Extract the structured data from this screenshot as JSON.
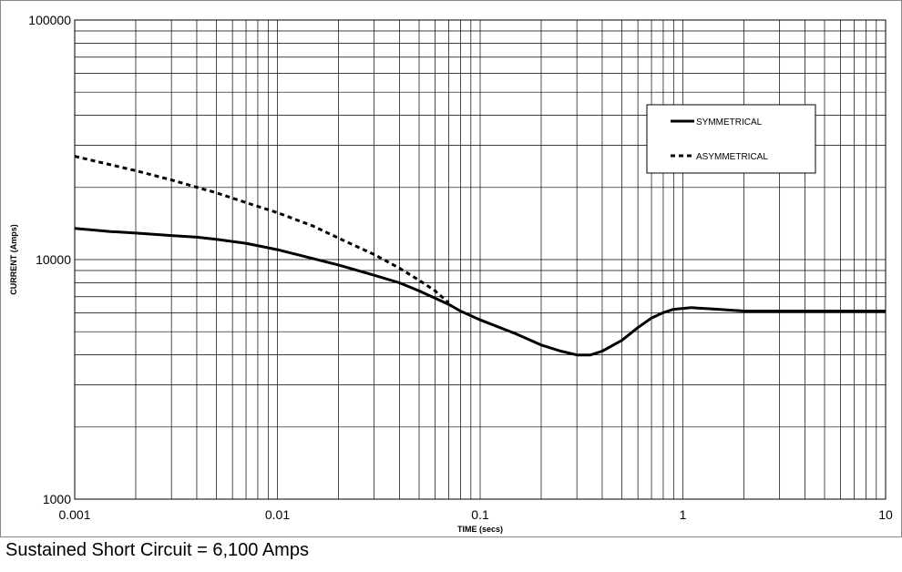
{
  "caption": "Sustained Short Circuit = 6,100 Amps",
  "chart_data": {
    "type": "line",
    "xlabel": "TIME (secs)",
    "ylabel": "CURRENT (Amps)",
    "x_scale": "log",
    "y_scale": "log",
    "xlim": [
      0.001,
      10
    ],
    "ylim": [
      1000,
      100000
    ],
    "x_ticks": [
      "0.001",
      "0.01",
      "0.1",
      "1",
      "10"
    ],
    "y_ticks": [
      "1000",
      "10000",
      "100000"
    ],
    "grid": true,
    "legend_position": "top-right",
    "series": [
      {
        "name": "SYMMETRICAL",
        "style": "solid",
        "color": "#000000",
        "points": [
          [
            0.001,
            13500
          ],
          [
            0.0015,
            13100
          ],
          [
            0.002,
            12900
          ],
          [
            0.003,
            12600
          ],
          [
            0.004,
            12400
          ],
          [
            0.005,
            12150
          ],
          [
            0.007,
            11700
          ],
          [
            0.01,
            11000
          ],
          [
            0.015,
            10100
          ],
          [
            0.02,
            9500
          ],
          [
            0.03,
            8600
          ],
          [
            0.04,
            8000
          ],
          [
            0.05,
            7400
          ],
          [
            0.06,
            6900
          ],
          [
            0.07,
            6500
          ],
          [
            0.08,
            6100
          ],
          [
            0.1,
            5600
          ],
          [
            0.15,
            4900
          ],
          [
            0.2,
            4400
          ],
          [
            0.25,
            4150
          ],
          [
            0.3,
            4000
          ],
          [
            0.35,
            4000
          ],
          [
            0.4,
            4150
          ],
          [
            0.5,
            4600
          ],
          [
            0.6,
            5200
          ],
          [
            0.7,
            5700
          ],
          [
            0.8,
            6000
          ],
          [
            0.9,
            6200
          ],
          [
            1.1,
            6300
          ],
          [
            1.5,
            6200
          ],
          [
            2,
            6100
          ],
          [
            5,
            6100
          ],
          [
            10,
            6100
          ]
        ]
      },
      {
        "name": "ASYMMETRICAL",
        "style": "dashed",
        "color": "#000000",
        "points": [
          [
            0.001,
            27000
          ],
          [
            0.002,
            23500
          ],
          [
            0.003,
            21500
          ],
          [
            0.005,
            19000
          ],
          [
            0.007,
            17300
          ],
          [
            0.01,
            15700
          ],
          [
            0.015,
            13800
          ],
          [
            0.02,
            12300
          ],
          [
            0.03,
            10500
          ],
          [
            0.04,
            9200
          ],
          [
            0.05,
            8200
          ],
          [
            0.06,
            7400
          ],
          [
            0.07,
            6600
          ]
        ]
      }
    ]
  }
}
